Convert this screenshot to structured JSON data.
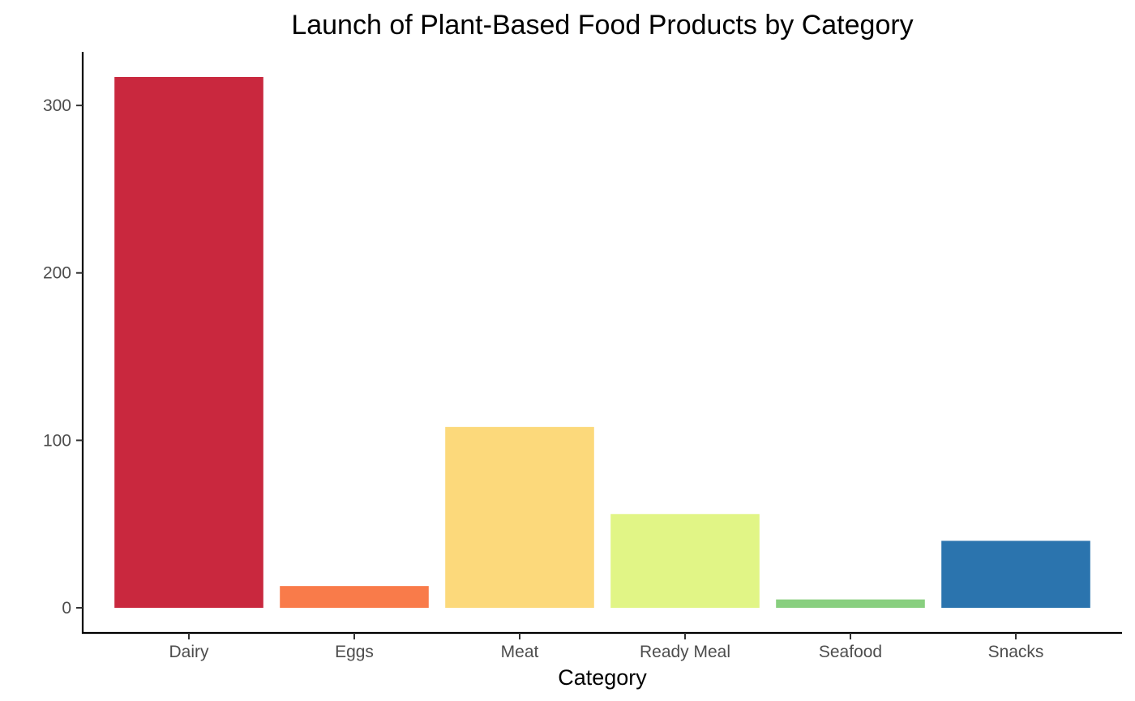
{
  "chart_data": {
    "type": "bar",
    "title": "Launch of Plant-Based Food Products by Category",
    "xlabel": "Category",
    "ylabel": "",
    "categories": [
      "Dairy",
      "Eggs",
      "Meat",
      "Ready Meal",
      "Seafood",
      "Snacks"
    ],
    "values": [
      317,
      13,
      108,
      56,
      5,
      40
    ],
    "colors": [
      "#c9283e",
      "#f97b4a",
      "#fcd97b",
      "#e1f586",
      "#88cf7f",
      "#2b74ae"
    ],
    "ylim": [
      -15,
      332
    ],
    "yticks": [
      0,
      100,
      200,
      300
    ],
    "grid": false,
    "legend": "none"
  }
}
